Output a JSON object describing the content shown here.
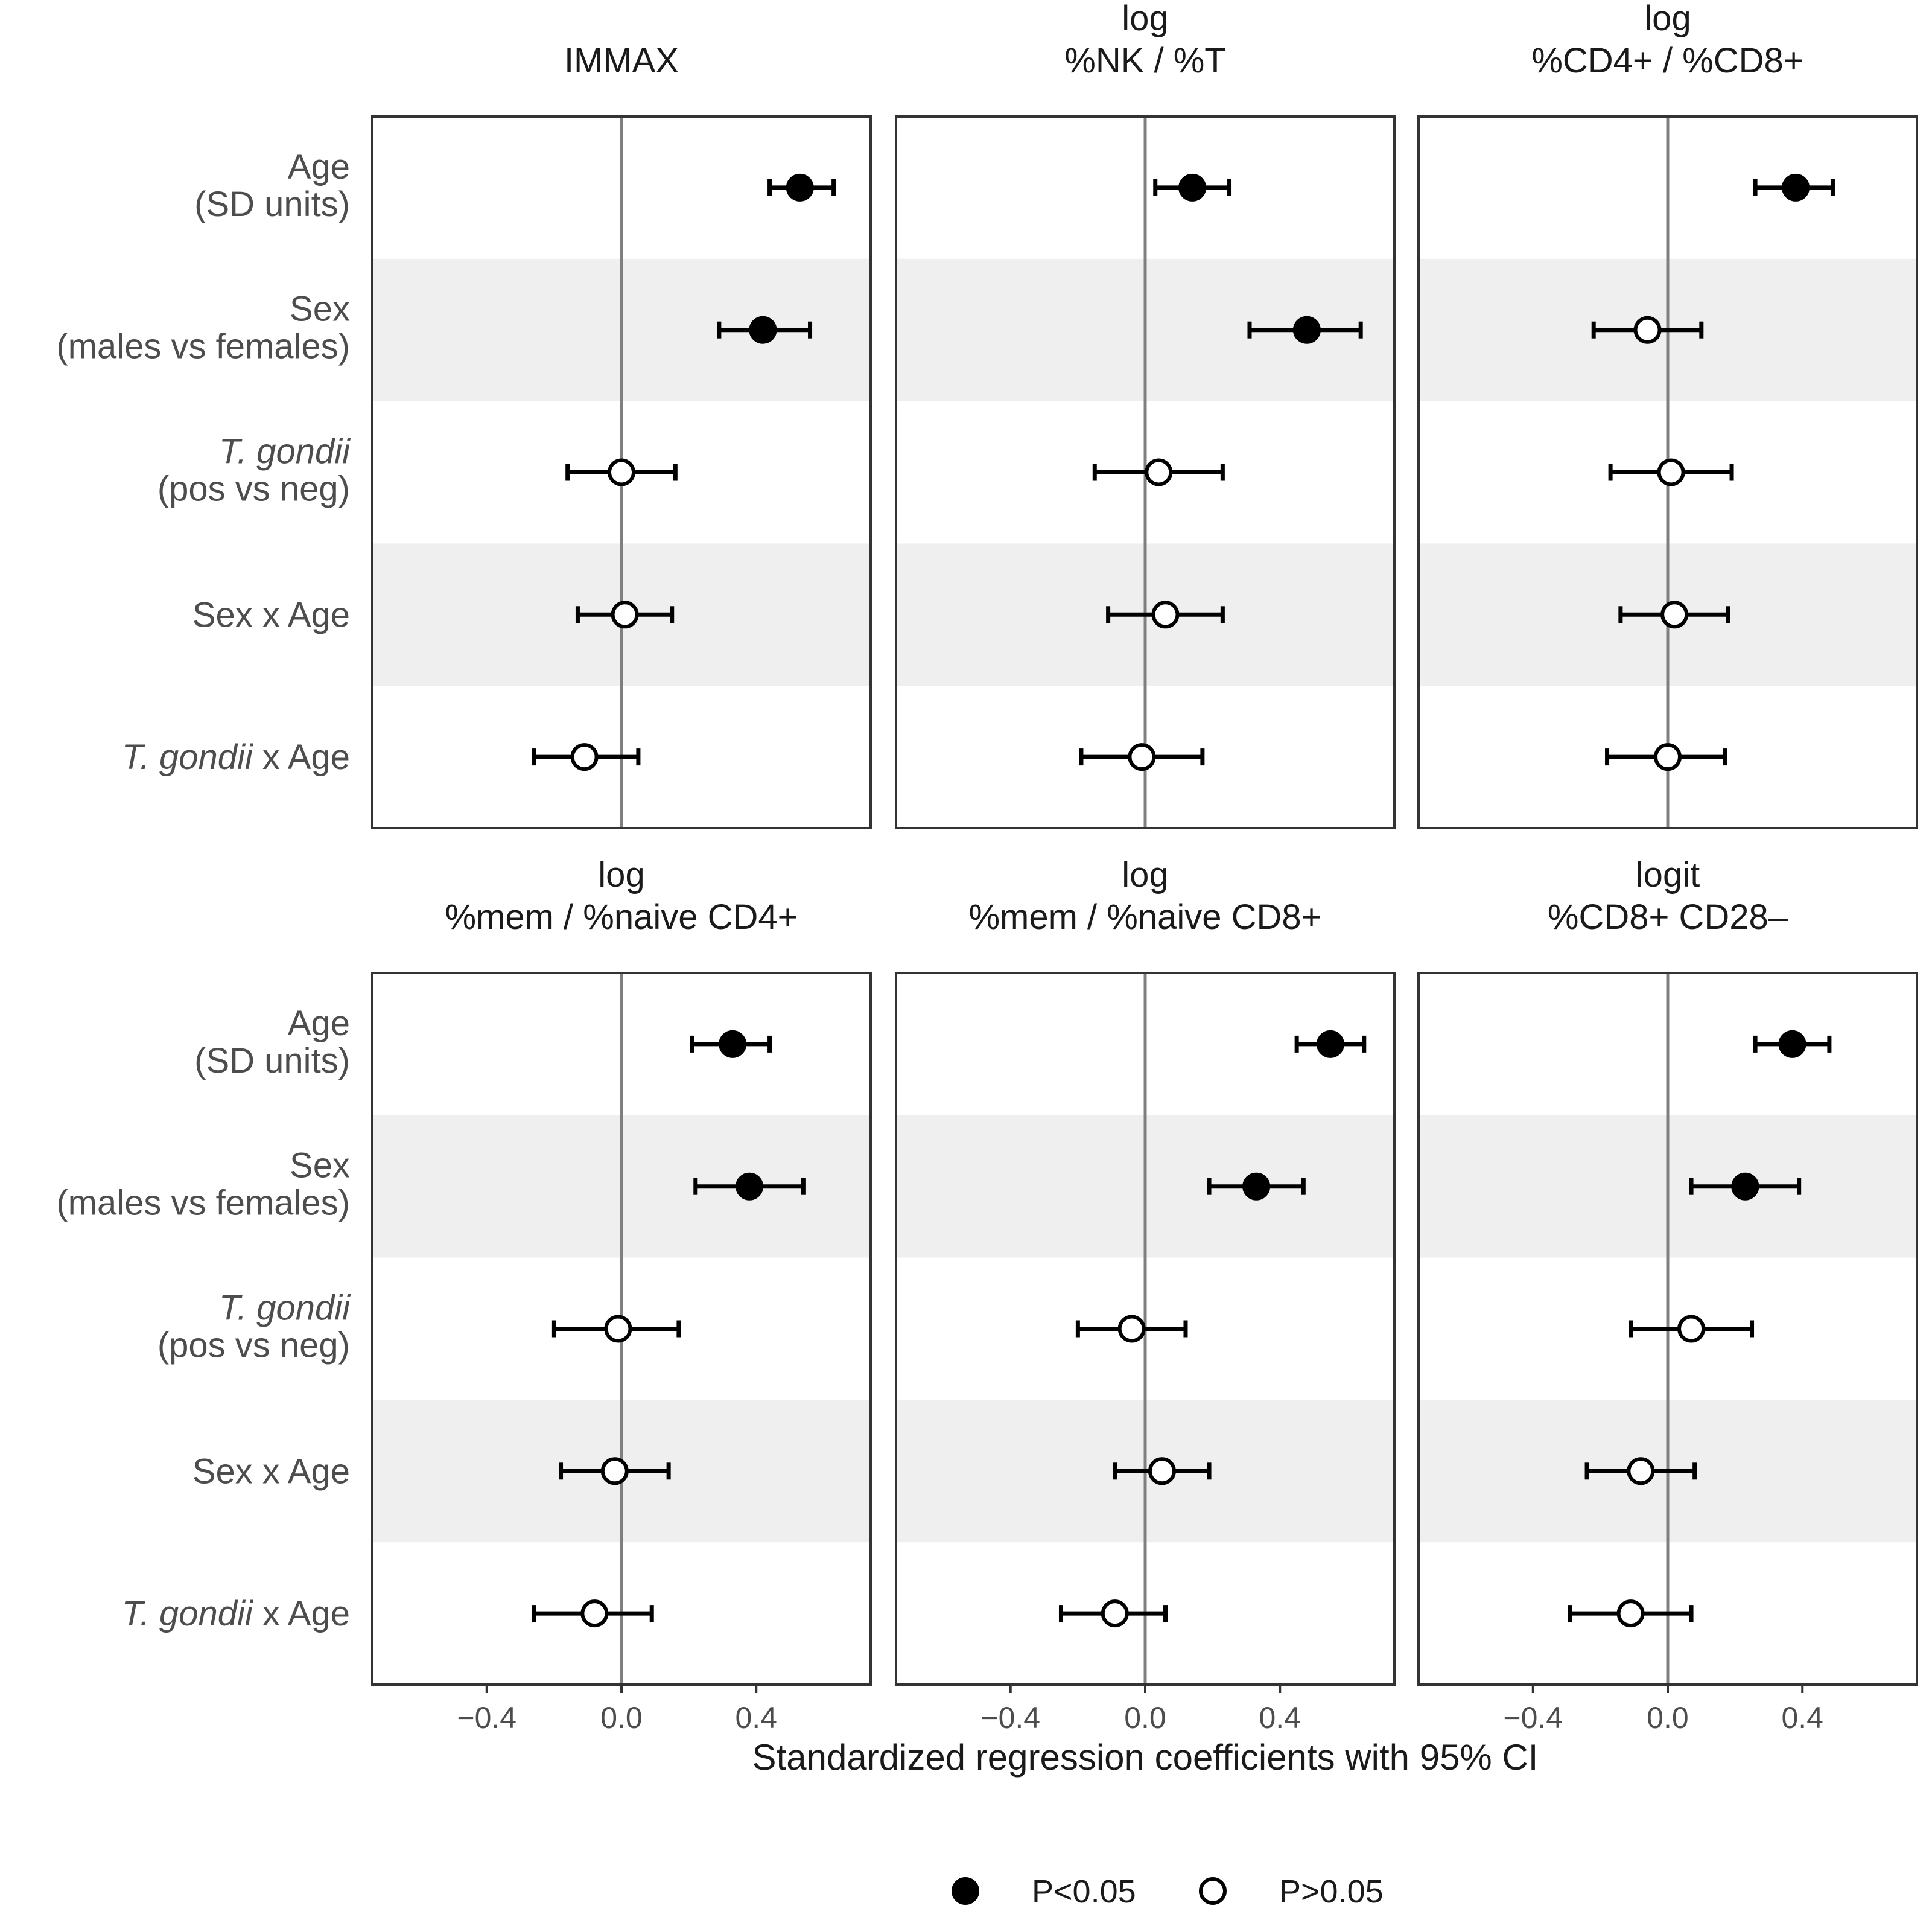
{
  "colors": {
    "band": "#efefef",
    "panel_border": "#333333",
    "zero_line": "#7f7f7f",
    "point_significant": "#000000",
    "point_nonsignificant": "#ffffff",
    "label_text": "#4d4d4d",
    "title_text": "#1a1a1a"
  },
  "chart_data": {
    "type": "scatter",
    "subtype": "forest-plot (point estimate with horizontal 95% CI error bars), 2x3 facets",
    "xlabel": "Standardized regression coefficients with 95% CI",
    "xlim": [
      -0.74,
      0.74
    ],
    "xticks": [
      -0.4,
      0.0,
      0.4
    ],
    "xtick_labels": [
      "−0.4",
      "0.0",
      "0.4"
    ],
    "reference_line": 0,
    "shaded_rows": [
      1,
      3
    ],
    "terms": [
      {
        "lines": [
          {
            "text": "Age",
            "italic": false
          },
          {
            "text": "(SD units)",
            "italic": false
          }
        ]
      },
      {
        "lines": [
          {
            "text": "Sex",
            "italic": false
          },
          {
            "text": "(males vs females)",
            "italic": false
          }
        ]
      },
      {
        "lines": [
          {
            "text": "T. gondii",
            "italic": true
          },
          {
            "text": "(pos vs neg)",
            "italic": false
          }
        ]
      },
      {
        "lines": [
          {
            "text": "Sex x Age",
            "italic": false
          }
        ]
      },
      {
        "lines": [
          {
            "text": "T. gondii",
            "italic": true,
            "suffix": " x Age"
          }
        ]
      }
    ],
    "legend": {
      "position": "bottom",
      "items": [
        {
          "label": "P<0.05",
          "fill": "#000000"
        },
        {
          "label": "P>0.05",
          "fill": "#ffffff"
        }
      ]
    },
    "panels": [
      {
        "title": [
          "IMMAX"
        ],
        "estimates": [
          {
            "term": "Age (SD units)",
            "est": 0.53,
            "lo": 0.44,
            "hi": 0.63,
            "significant": true
          },
          {
            "term": "Sex (males vs females)",
            "est": 0.42,
            "lo": 0.29,
            "hi": 0.56,
            "significant": true
          },
          {
            "term": "T. gondii (pos vs neg)",
            "est": 0.0,
            "lo": -0.16,
            "hi": 0.16,
            "significant": false
          },
          {
            "term": "Sex x Age",
            "est": 0.01,
            "lo": -0.13,
            "hi": 0.15,
            "significant": false
          },
          {
            "term": "T. gondii x Age",
            "est": -0.11,
            "lo": -0.26,
            "hi": 0.05,
            "significant": false
          }
        ]
      },
      {
        "title": [
          "log",
          "%NK / %T"
        ],
        "estimates": [
          {
            "term": "Age (SD units)",
            "est": 0.14,
            "lo": 0.03,
            "hi": 0.25,
            "significant": true
          },
          {
            "term": "Sex (males vs females)",
            "est": 0.48,
            "lo": 0.31,
            "hi": 0.64,
            "significant": true
          },
          {
            "term": "T. gondii (pos vs neg)",
            "est": 0.04,
            "lo": -0.15,
            "hi": 0.23,
            "significant": false
          },
          {
            "term": "Sex x Age",
            "est": 0.06,
            "lo": -0.11,
            "hi": 0.23,
            "significant": false
          },
          {
            "term": "T. gondii x Age",
            "est": -0.01,
            "lo": -0.19,
            "hi": 0.17,
            "significant": false
          }
        ]
      },
      {
        "title": [
          "log",
          "%CD4+ / %CD8+"
        ],
        "estimates": [
          {
            "term": "Age (SD units)",
            "est": 0.38,
            "lo": 0.26,
            "hi": 0.49,
            "significant": true
          },
          {
            "term": "Sex (males vs females)",
            "est": -0.06,
            "lo": -0.22,
            "hi": 0.1,
            "significant": false
          },
          {
            "term": "T. gondii (pos vs neg)",
            "est": 0.01,
            "lo": -0.17,
            "hi": 0.19,
            "significant": false
          },
          {
            "term": "Sex x Age",
            "est": 0.02,
            "lo": -0.14,
            "hi": 0.18,
            "significant": false
          },
          {
            "term": "T. gondii x Age",
            "est": 0.0,
            "lo": -0.18,
            "hi": 0.17,
            "significant": false
          }
        ]
      },
      {
        "title": [
          "log",
          "%mem / %naive CD4+"
        ],
        "estimates": [
          {
            "term": "Age (SD units)",
            "est": 0.33,
            "lo": 0.21,
            "hi": 0.44,
            "significant": true
          },
          {
            "term": "Sex (males vs females)",
            "est": 0.38,
            "lo": 0.22,
            "hi": 0.54,
            "significant": true
          },
          {
            "term": "T. gondii (pos vs neg)",
            "est": -0.01,
            "lo": -0.2,
            "hi": 0.17,
            "significant": false
          },
          {
            "term": "Sex x Age",
            "est": -0.02,
            "lo": -0.18,
            "hi": 0.14,
            "significant": false
          },
          {
            "term": "T. gondii x Age",
            "est": -0.08,
            "lo": -0.26,
            "hi": 0.09,
            "significant": false
          }
        ]
      },
      {
        "title": [
          "log",
          "%mem / %naive CD8+"
        ],
        "estimates": [
          {
            "term": "Age (SD units)",
            "est": 0.55,
            "lo": 0.45,
            "hi": 0.65,
            "significant": true
          },
          {
            "term": "Sex (males vs females)",
            "est": 0.33,
            "lo": 0.19,
            "hi": 0.47,
            "significant": true
          },
          {
            "term": "T. gondii (pos vs neg)",
            "est": -0.04,
            "lo": -0.2,
            "hi": 0.12,
            "significant": false
          },
          {
            "term": "Sex x Age",
            "est": 0.05,
            "lo": -0.09,
            "hi": 0.19,
            "significant": false
          },
          {
            "term": "T. gondii x Age",
            "est": -0.09,
            "lo": -0.25,
            "hi": 0.06,
            "significant": false
          }
        ]
      },
      {
        "title": [
          "logit",
          "%CD8+ CD28–"
        ],
        "estimates": [
          {
            "term": "Age (SD units)",
            "est": 0.37,
            "lo": 0.26,
            "hi": 0.48,
            "significant": true
          },
          {
            "term": "Sex (males vs females)",
            "est": 0.23,
            "lo": 0.07,
            "hi": 0.39,
            "significant": true
          },
          {
            "term": "T. gondii (pos vs neg)",
            "est": 0.07,
            "lo": -0.11,
            "hi": 0.25,
            "significant": false
          },
          {
            "term": "Sex x Age",
            "est": -0.08,
            "lo": -0.24,
            "hi": 0.08,
            "significant": false
          },
          {
            "term": "T. gondii x Age",
            "est": -0.11,
            "lo": -0.29,
            "hi": 0.07,
            "significant": false
          }
        ]
      }
    ]
  }
}
